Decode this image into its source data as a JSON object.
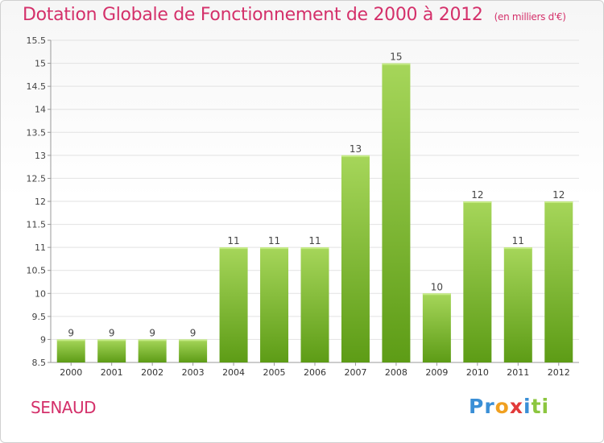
{
  "header": {
    "title": "Dotation Globale de Fonctionnement de 2000 à 2012",
    "unit": "(en milliers d'€)"
  },
  "footer": {
    "commune": "SENAUD",
    "logo_letters": [
      {
        "ch": "P",
        "color": "#3a8fd6"
      },
      {
        "ch": "r",
        "color": "#3a8fd6"
      },
      {
        "ch": "o",
        "color": "#f0a020"
      },
      {
        "ch": "x",
        "color": "#e23a3a"
      },
      {
        "ch": "i",
        "color": "#3a8fd6"
      },
      {
        "ch": "t",
        "color": "#8cc63f"
      },
      {
        "ch": "i",
        "color": "#8cc63f"
      }
    ]
  },
  "colors": {
    "bar_top": "#a6d65a",
    "bar_bottom": "#5d9c16",
    "title": "#d4306a",
    "grid": "#e2e2e2",
    "axis": "#999999"
  },
  "chart_data": {
    "type": "bar",
    "categories": [
      "2000",
      "2001",
      "2002",
      "2003",
      "2004",
      "2005",
      "2006",
      "2007",
      "2008",
      "2009",
      "2010",
      "2011",
      "2012"
    ],
    "values": [
      9,
      9,
      9,
      9,
      11,
      11,
      11,
      13,
      15,
      10,
      12,
      11,
      12
    ],
    "data_labels": [
      "9",
      "9",
      "9",
      "9",
      "11",
      "11",
      "11",
      "13",
      "15",
      "10",
      "12",
      "11",
      "12"
    ],
    "title": "Dotation Globale de Fonctionnement de 2000 à 2012",
    "ylim": [
      8.5,
      15.5
    ],
    "yticks": [
      8.5,
      9,
      9.5,
      10,
      10.5,
      11,
      11.5,
      12,
      12.5,
      13,
      13.5,
      14,
      14.5,
      15,
      15.5
    ],
    "ytick_labels": [
      "8.5",
      "9",
      "9.5",
      "10",
      "10.5",
      "11",
      "11.5",
      "12",
      "12.5",
      "13",
      "13.5",
      "14",
      "14.5",
      "15",
      "15.5"
    ],
    "grid": true
  }
}
